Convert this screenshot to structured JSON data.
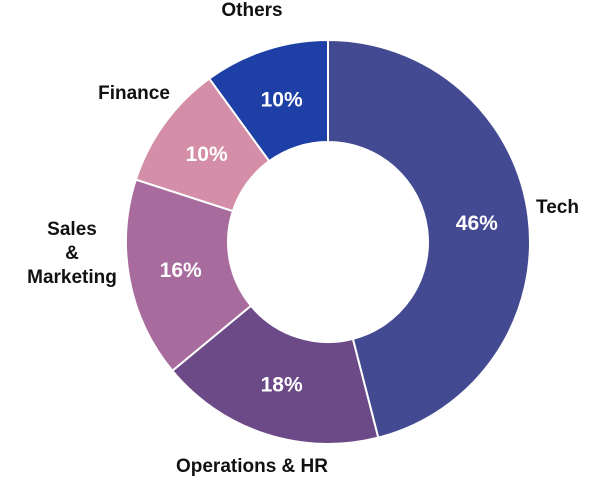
{
  "chart_data": {
    "type": "pie",
    "donut": true,
    "legend": "none",
    "slices": [
      {
        "label_lines": [
          "Tech"
        ],
        "value": 46,
        "value_label": "46%",
        "color": "#444A92"
      },
      {
        "label_lines": [
          "Operations & HR"
        ],
        "value": 18,
        "value_label": "18%",
        "color": "#6C4A88"
      },
      {
        "label_lines": [
          "Sales",
          "&",
          "Marketing"
        ],
        "value": 16,
        "value_label": "16%",
        "color": "#A76B9E"
      },
      {
        "label_lines": [
          "Finance"
        ],
        "value": 10,
        "value_label": "10%",
        "color": "#D48EA7"
      },
      {
        "label_lines": [
          "Others"
        ],
        "value": 10,
        "value_label": "10%",
        "color": "#1E3FA6"
      }
    ]
  }
}
